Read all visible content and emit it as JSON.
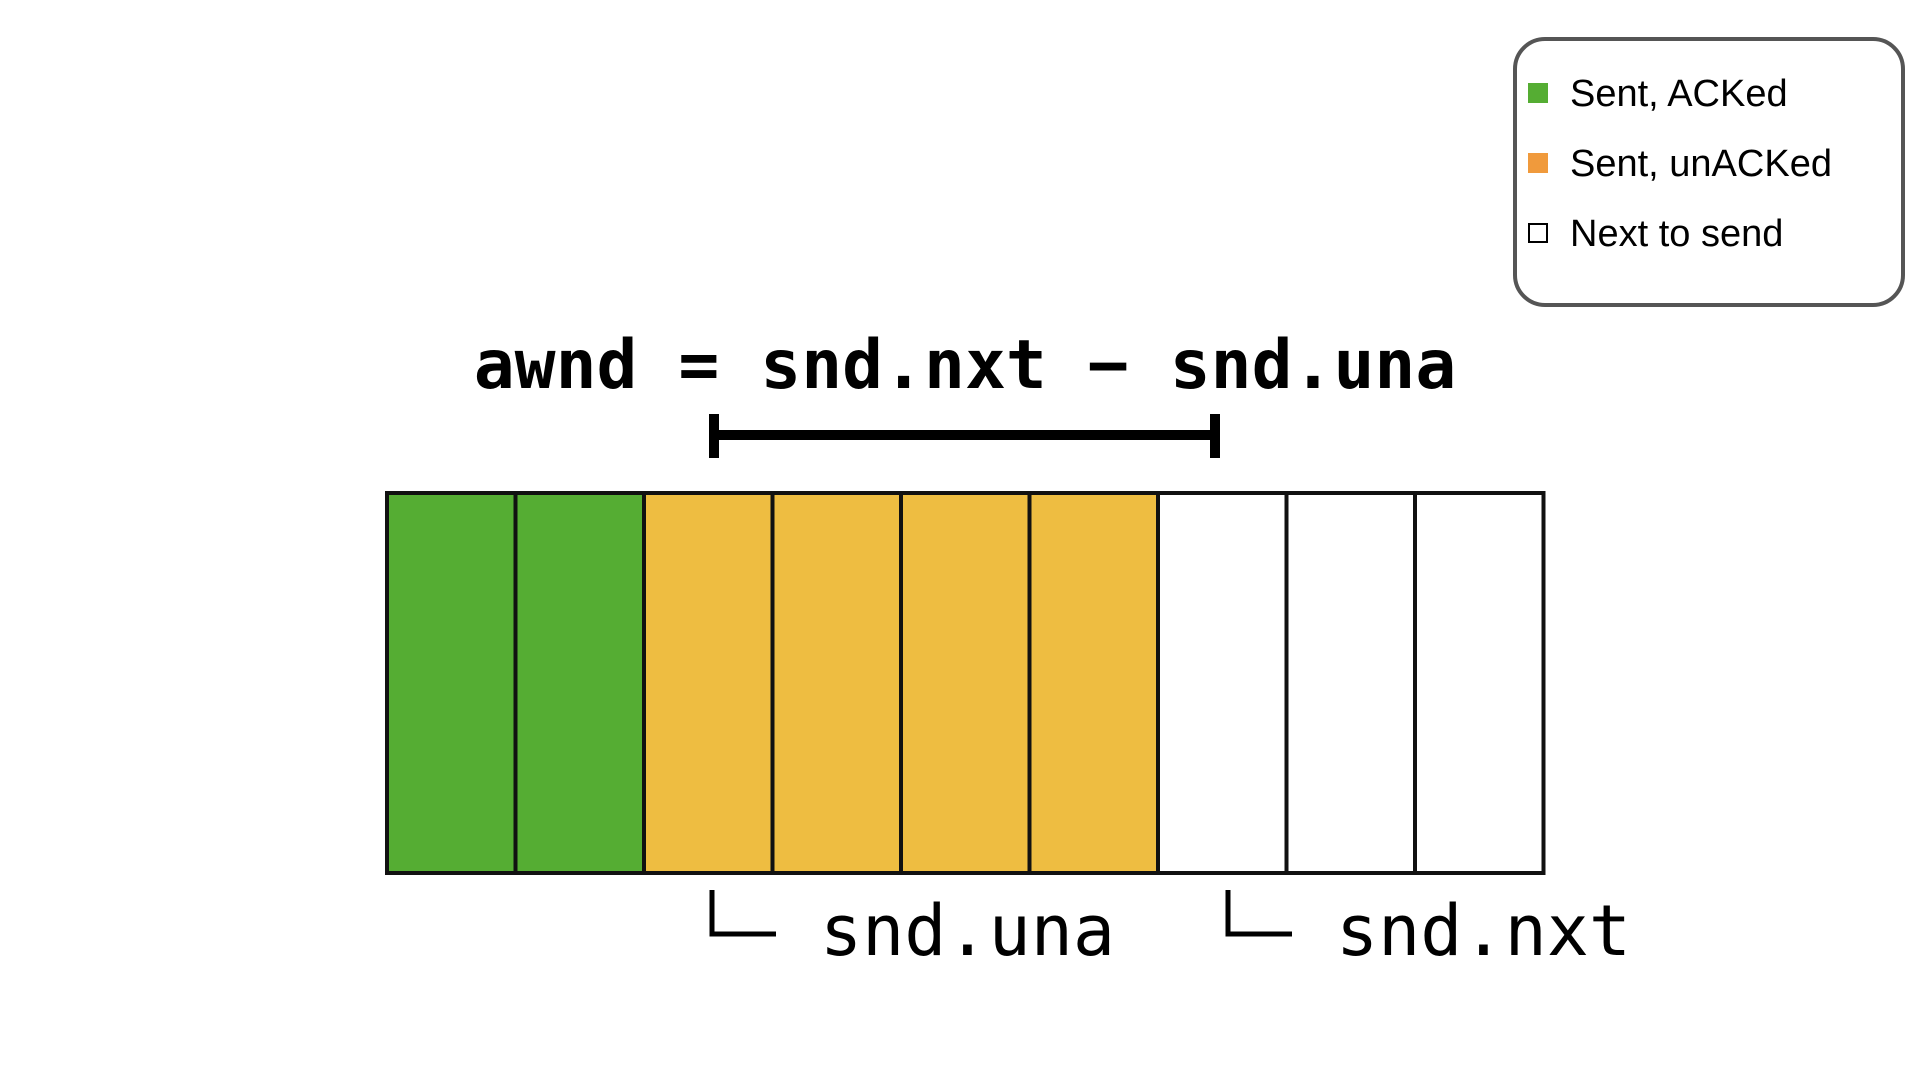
{
  "formula": "awnd = snd.nxt − snd.una",
  "colors": {
    "acked": "#55ad33",
    "unacked": "#eebd41",
    "next": "#ffffff",
    "legend_acked": "#55ad33",
    "legend_unacked": "#f09a3c",
    "outline": "#111111"
  },
  "legend": {
    "items": [
      {
        "label": "Sent, ACKed",
        "state": "acked"
      },
      {
        "label": "Sent, unACKed",
        "state": "unacked"
      },
      {
        "label": "Next to send",
        "state": "next"
      }
    ]
  },
  "segments": [
    "acked",
    "acked",
    "unacked",
    "unacked",
    "unacked",
    "unacked",
    "next",
    "next",
    "next"
  ],
  "pointers": [
    {
      "label": "snd.una",
      "segment_index": 2
    },
    {
      "label": "snd.nxt",
      "segment_index": 6
    }
  ],
  "bracket": {
    "from_segment": 2,
    "to_segment": 6
  }
}
